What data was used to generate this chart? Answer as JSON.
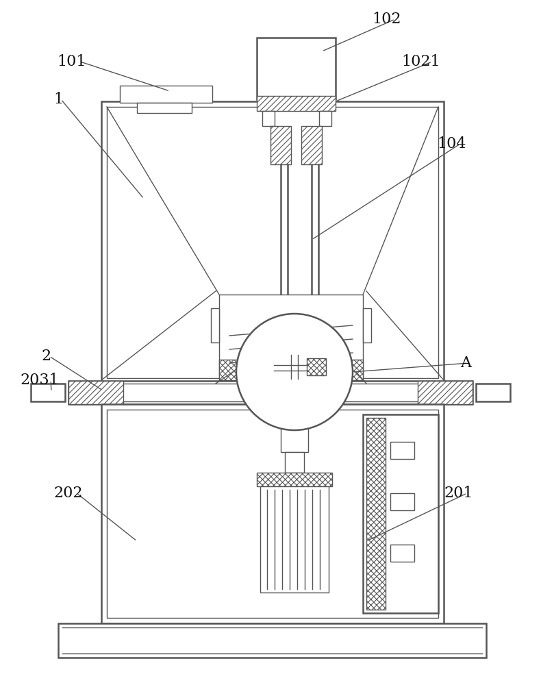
{
  "bg_color": "#ffffff",
  "line_color": "#555555",
  "figsize": [
    7.9,
    10.0
  ],
  "dpi": 100,
  "label_fontsize": 16,
  "label_color": "#111111"
}
